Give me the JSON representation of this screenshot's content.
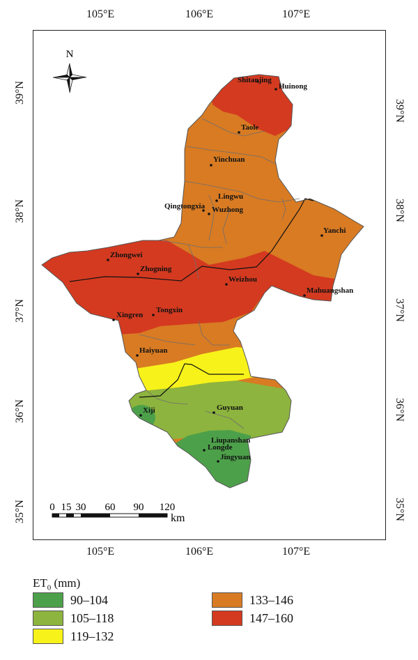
{
  "axis": {
    "top": [
      "105°E",
      "106°E",
      "107°E"
    ],
    "bottom": [
      "105°E",
      "106°E",
      "107°E"
    ],
    "left": [
      "39°N",
      "38°N",
      "37°N",
      "36°N",
      "35°N"
    ],
    "right": [
      "39°N",
      "38°N",
      "37°N",
      "36°N",
      "35°N"
    ]
  },
  "north_arrow": {
    "label": "N"
  },
  "scale_bar": {
    "ticks": [
      "0",
      "15",
      "30",
      "60",
      "90",
      "120"
    ],
    "unit": "km"
  },
  "places": [
    "Shitanjing",
    "Huinong",
    "Taole",
    "Yinchuan",
    "Lingwu",
    "Qingtongxia",
    "Wuzhong",
    "Yanchi",
    "Zhongwei",
    "Zhogning",
    "Weizhou",
    "Mahuangshan",
    "Xingren",
    "Tongxin",
    "Haiyuan",
    "Guyuan",
    "Xiji",
    "Liupanshan",
    "Longde",
    "Jingyuan"
  ],
  "legend": {
    "title_main": "ET",
    "title_sub": "0",
    "title_unit": " (mm)",
    "items": [
      {
        "label": "90–104",
        "color": "#4da04a"
      },
      {
        "label": "105–118",
        "color": "#8db43e"
      },
      {
        "label": "119–132",
        "color": "#f7f21a"
      },
      {
        "label": "133–146",
        "color": "#d87b23"
      },
      {
        "label": "147–160",
        "color": "#d43a20"
      }
    ]
  }
}
